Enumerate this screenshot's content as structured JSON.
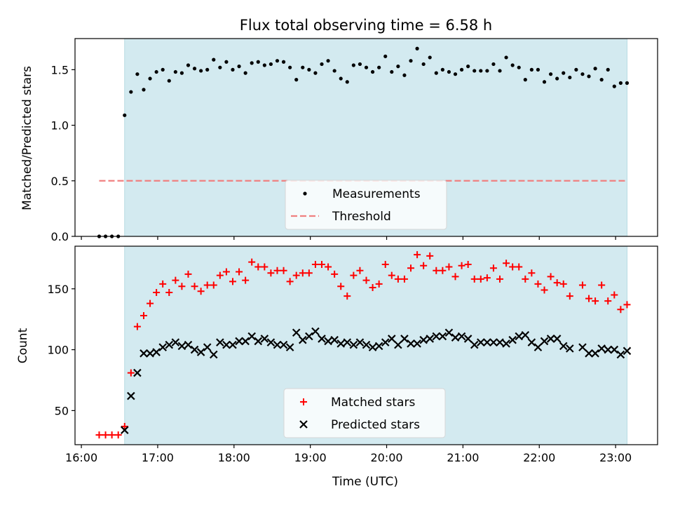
{
  "figure_title": "Flux total observing time = 6.58 h",
  "chart_data": [
    {
      "type": "scatter",
      "panel": "top",
      "title": "Flux total observing time = 6.58 h",
      "xlabel": "",
      "ylabel": "Matched/Predicted stars",
      "xlim": [
        "15:55",
        "23:33"
      ],
      "ylim": [
        0,
        1.78
      ],
      "yticks": [
        "0.0",
        "0.5",
        "1.0",
        "1.5"
      ],
      "shaded_x_range": [
        "16:34",
        "23:09"
      ],
      "shade_color": "#d3eaf0",
      "legend": {
        "placement": "lower center"
      },
      "threshold": {
        "name": "Threshold",
        "y": 0.5,
        "x_from": "16:14",
        "x_to": "23:09",
        "color": "#f08080",
        "style": "dashed"
      },
      "series": [
        {
          "name": "Measurements",
          "marker": "dot",
          "color": "#000000",
          "x": [
            "16:14",
            "16:19",
            "16:24",
            "16:29",
            "16:34",
            "16:39",
            "16:44",
            "16:49",
            "16:54",
            "16:59",
            "17:04",
            "17:09",
            "17:14",
            "17:19",
            "17:24",
            "17:29",
            "17:34",
            "17:39",
            "17:44",
            "17:49",
            "17:54",
            "17:59",
            "18:04",
            "18:09",
            "18:14",
            "18:19",
            "18:24",
            "18:29",
            "18:34",
            "18:39",
            "18:44",
            "18:49",
            "18:54",
            "18:59",
            "19:04",
            "19:09",
            "19:14",
            "19:19",
            "19:24",
            "19:29",
            "19:34",
            "19:39",
            "19:44",
            "19:49",
            "19:54",
            "19:59",
            "20:04",
            "20:09",
            "20:14",
            "20:19",
            "20:24",
            "20:29",
            "20:34",
            "20:39",
            "20:44",
            "20:49",
            "20:54",
            "20:59",
            "21:04",
            "21:09",
            "21:14",
            "21:19",
            "21:24",
            "21:29",
            "21:34",
            "21:39",
            "21:44",
            "21:49",
            "21:54",
            "21:59",
            "22:04",
            "22:09",
            "22:14",
            "22:19",
            "22:24",
            "22:29",
            "22:34",
            "22:39",
            "22:44",
            "22:49",
            "22:54",
            "22:59",
            "23:04",
            "23:09"
          ],
          "y": [
            0.0,
            0.0,
            0.0,
            0.0,
            1.09,
            1.3,
            1.46,
            1.32,
            1.42,
            1.48,
            1.5,
            1.4,
            1.48,
            1.47,
            1.54,
            1.51,
            1.49,
            1.5,
            1.59,
            1.52,
            1.57,
            1.5,
            1.53,
            1.47,
            1.56,
            1.57,
            1.54,
            1.55,
            1.58,
            1.57,
            1.52,
            1.41,
            1.52,
            1.5,
            1.47,
            1.55,
            1.58,
            1.49,
            1.42,
            1.39,
            1.54,
            1.55,
            1.52,
            1.48,
            1.52,
            1.62,
            1.48,
            1.53,
            1.45,
            1.58,
            1.69,
            1.55,
            1.61,
            1.47,
            1.5,
            1.48,
            1.46,
            1.5,
            1.53,
            1.49,
            1.49,
            1.49,
            1.55,
            1.49,
            1.61,
            1.54,
            1.52,
            1.41,
            1.5,
            1.5,
            1.39,
            1.46,
            1.42,
            1.47,
            1.43,
            1.5,
            1.46,
            1.44,
            1.51,
            1.41,
            1.5,
            1.35,
            1.38,
            1.38
          ]
        }
      ]
    },
    {
      "type": "scatter",
      "panel": "bottom",
      "title": "",
      "xlabel": "Time (UTC)",
      "ylabel": "Count",
      "xlim": [
        "15:55",
        "23:33"
      ],
      "ylim": [
        22,
        185
      ],
      "yticks": [
        "50",
        "100",
        "150"
      ],
      "xticks": [
        "16:00",
        "17:00",
        "18:00",
        "19:00",
        "20:00",
        "21:00",
        "22:00",
        "23:00"
      ],
      "shaded_x_range": [
        "16:34",
        "23:09"
      ],
      "shade_color": "#d3eaf0",
      "legend": {
        "placement": "lower center"
      },
      "series": [
        {
          "name": "Matched stars",
          "marker": "plus",
          "color": "#ff0000",
          "x": [
            "16:14",
            "16:19",
            "16:24",
            "16:29",
            "16:34",
            "16:39",
            "16:44",
            "16:49",
            "16:54",
            "16:59",
            "17:04",
            "17:09",
            "17:14",
            "17:19",
            "17:24",
            "17:29",
            "17:34",
            "17:39",
            "17:44",
            "17:49",
            "17:54",
            "17:59",
            "18:04",
            "18:09",
            "18:14",
            "18:19",
            "18:24",
            "18:29",
            "18:34",
            "18:39",
            "18:44",
            "18:49",
            "18:54",
            "18:59",
            "19:04",
            "19:09",
            "19:14",
            "19:19",
            "19:24",
            "19:29",
            "19:34",
            "19:39",
            "19:44",
            "19:49",
            "19:54",
            "19:59",
            "20:04",
            "20:09",
            "20:14",
            "20:19",
            "20:24",
            "20:29",
            "20:34",
            "20:39",
            "20:44",
            "20:49",
            "20:54",
            "20:59",
            "21:04",
            "21:09",
            "21:14",
            "21:19",
            "21:24",
            "21:29",
            "21:34",
            "21:39",
            "21:44",
            "21:49",
            "21:54",
            "21:59",
            "22:04",
            "22:09",
            "22:14",
            "22:19",
            "22:24",
            "22:29",
            "22:34",
            "22:39",
            "22:44",
            "22:49",
            "22:54",
            "22:59",
            "23:04",
            "23:09"
          ],
          "y": [
            30,
            30,
            30,
            30,
            37,
            81,
            119,
            128,
            138,
            147,
            154,
            147,
            157,
            152,
            162,
            152,
            148,
            153,
            153,
            161,
            164,
            156,
            164,
            157,
            172,
            168,
            168,
            163,
            165,
            165,
            156,
            161,
            163,
            163,
            170,
            170,
            168,
            162,
            152,
            144,
            161,
            165,
            157,
            151,
            154,
            170,
            161,
            158,
            158,
            167,
            178,
            169,
            177,
            165,
            165,
            168,
            160,
            169,
            170,
            158,
            158,
            159,
            167,
            158,
            171,
            168,
            168,
            158,
            163,
            154,
            149,
            160,
            155,
            154,
            144,
            null,
            153,
            142,
            140,
            153,
            140,
            145,
            133,
            137
          ]
        },
        {
          "name": "Predicted stars",
          "marker": "x",
          "color": "#000000",
          "x": [
            "16:34",
            "16:39",
            "16:44",
            "16:49",
            "16:54",
            "16:59",
            "17:04",
            "17:09",
            "17:14",
            "17:19",
            "17:24",
            "17:29",
            "17:34",
            "17:39",
            "17:44",
            "17:49",
            "17:54",
            "17:59",
            "18:04",
            "18:09",
            "18:14",
            "18:19",
            "18:24",
            "18:29",
            "18:34",
            "18:39",
            "18:44",
            "18:49",
            "18:54",
            "18:59",
            "19:04",
            "19:09",
            "19:14",
            "19:19",
            "19:24",
            "19:29",
            "19:34",
            "19:39",
            "19:44",
            "19:49",
            "19:54",
            "19:59",
            "20:04",
            "20:09",
            "20:14",
            "20:19",
            "20:24",
            "20:29",
            "20:34",
            "20:39",
            "20:44",
            "20:49",
            "20:54",
            "20:59",
            "21:04",
            "21:09",
            "21:14",
            "21:19",
            "21:24",
            "21:29",
            "21:34",
            "21:39",
            "21:44",
            "21:49",
            "21:54",
            "21:59",
            "22:04",
            "22:09",
            "22:14",
            "22:19",
            "22:24",
            "22:29",
            "22:34",
            "22:39",
            "22:44",
            "22:49",
            "22:54",
            "22:59",
            "23:04",
            "23:09"
          ],
          "y": [
            34,
            62,
            81,
            97,
            97,
            98,
            102,
            104,
            106,
            103,
            104,
            100,
            98,
            102,
            96,
            106,
            104,
            104,
            107,
            107,
            111,
            107,
            109,
            106,
            104,
            104,
            102,
            114,
            108,
            111,
            115,
            109,
            107,
            108,
            105,
            106,
            104,
            106,
            104,
            102,
            103,
            106,
            109,
            104,
            109,
            105,
            105,
            108,
            109,
            111,
            111,
            114,
            110,
            111,
            109,
            104,
            106,
            106,
            106,
            106,
            105,
            108,
            111,
            112,
            106,
            102,
            107,
            109,
            109,
            103,
            101,
            null,
            102,
            97,
            97,
            101,
            100,
            100,
            96,
            99
          ]
        }
      ]
    }
  ]
}
